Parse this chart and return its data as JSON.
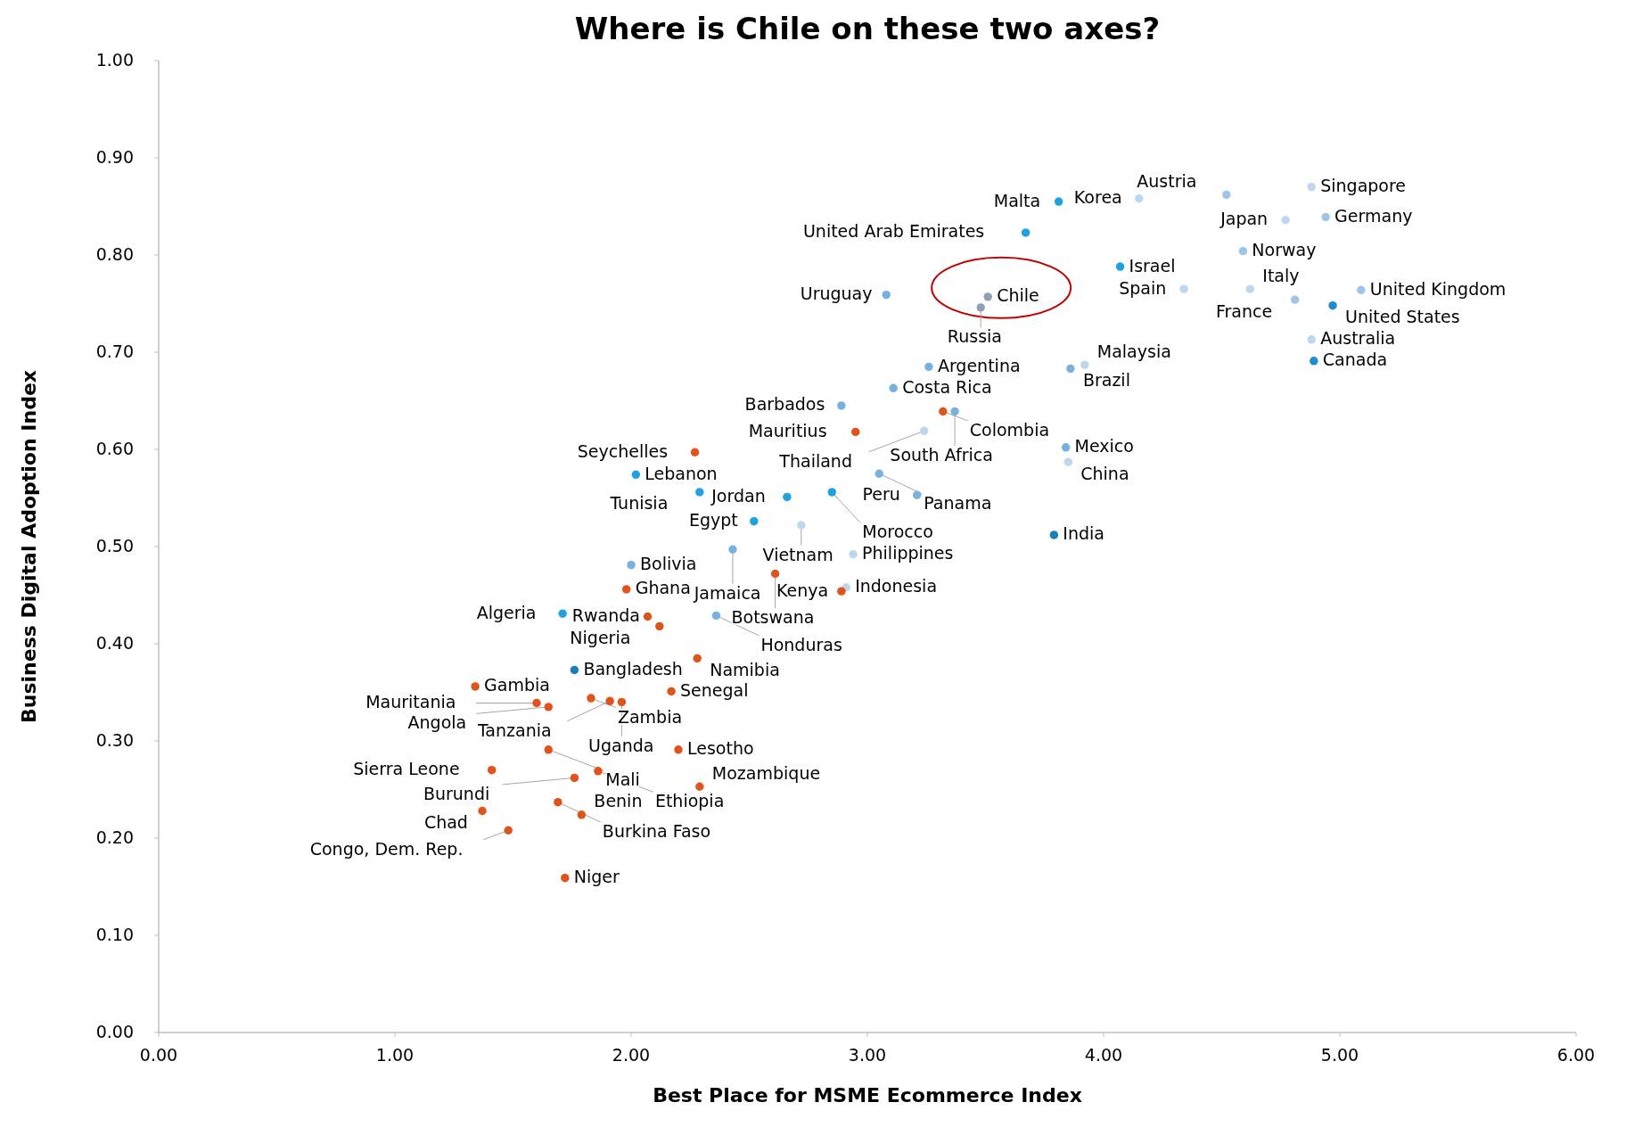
{
  "chart_data": {
    "type": "scatter",
    "title": "Where is Chile on these two axes?",
    "xlabel": "Best Place for MSME Ecommerce Index",
    "ylabel": "Business Digital Adoption Index",
    "xlim": [
      0,
      6
    ],
    "ylim": [
      0,
      1
    ],
    "xticks": [
      {
        "value": 0,
        "label": "0.00"
      },
      {
        "value": 1,
        "label": "1.00"
      },
      {
        "value": 2,
        "label": "2.00"
      },
      {
        "value": 3,
        "label": "3.00"
      },
      {
        "value": 4,
        "label": "4.00"
      },
      {
        "value": 5,
        "label": "5.00"
      },
      {
        "value": 6,
        "label": "6.00"
      }
    ],
    "yticks": [
      {
        "value": 0,
        "label": "0.00"
      },
      {
        "value": 0.1,
        "label": "0.10"
      },
      {
        "value": 0.2,
        "label": "0.20"
      },
      {
        "value": 0.3,
        "label": "0.30"
      },
      {
        "value": 0.4,
        "label": "0.40"
      },
      {
        "value": 0.5,
        "label": "0.50"
      },
      {
        "value": 0.6,
        "label": "0.60"
      },
      {
        "value": 0.7,
        "label": "0.70"
      },
      {
        "value": 0.8,
        "label": "0.80"
      },
      {
        "value": 0.9,
        "label": "0.90"
      },
      {
        "value": 1,
        "label": "1.00"
      }
    ],
    "grid": false,
    "marker": "circle",
    "x": [
      3.51,
      4.88,
      4.52,
      4.15,
      3.81,
      4.94,
      4.77,
      3.67,
      4.59,
      4.07,
      5.09,
      4.34,
      4.62,
      4.81,
      4.97,
      3.08,
      3.48,
      4.88,
      4.89,
      3.26,
      3.86,
      3.92,
      3.11,
      2.89,
      3.32,
      3.37,
      2.95,
      3.24,
      2.27,
      3.84,
      2.02,
      3.05,
      3.85,
      2.29,
      2.85,
      2.66,
      2.52,
      3.21,
      2.72,
      3.79,
      2.0,
      2.43,
      2.94,
      2.61,
      1.98,
      2.91,
      2.89,
      1.71,
      2.07,
      2.36,
      2.12,
      2.28,
      1.76,
      1.34,
      2.17,
      1.83,
      1.91,
      1.96,
      1.65,
      1.6,
      1.41,
      2.2,
      1.65,
      1.86,
      1.76,
      2.29,
      1.37,
      1.69,
      1.79,
      1.48,
      1.72
    ],
    "values": [
      0.757,
      0.87,
      0.862,
      0.858,
      0.855,
      0.839,
      0.836,
      0.823,
      0.804,
      0.788,
      0.764,
      0.765,
      0.765,
      0.754,
      0.748,
      0.759,
      0.746,
      0.713,
      0.691,
      0.685,
      0.683,
      0.687,
      0.663,
      0.645,
      0.639,
      0.639,
      0.618,
      0.619,
      0.597,
      0.602,
      0.574,
      0.575,
      0.587,
      0.556,
      0.556,
      0.551,
      0.526,
      0.553,
      0.522,
      0.512,
      0.481,
      0.497,
      0.492,
      0.472,
      0.456,
      0.458,
      0.454,
      0.431,
      0.428,
      0.429,
      0.418,
      0.385,
      0.373,
      0.356,
      0.351,
      0.344,
      0.341,
      0.34,
      0.335,
      0.339,
      0.27,
      0.291,
      0.291,
      0.269,
      0.262,
      0.253,
      0.228,
      0.237,
      0.224,
      0.208,
      0.159
    ],
    "colors": [
      "#8e9fb8",
      "#bcd7ef",
      "#9cc5e8",
      "#bcd7ef",
      "#1fa3e0",
      "#9cc5e8",
      "#bcd7ef",
      "#1fa3e0",
      "#9cc5e8",
      "#1fa3e0",
      "#9cc5e8",
      "#bcd7ef",
      "#bcd7ef",
      "#9cc5e8",
      "#1f8ccc",
      "#79b1de",
      "#8e9fb8",
      "#bcd7ef",
      "#1f8ccc",
      "#79b1de",
      "#79b1de",
      "#bcd7ef",
      "#79b1de",
      "#79b1de",
      "#e0531a",
      "#79b1de",
      "#e0531a",
      "#bcd7ef",
      "#e0531a",
      "#79b1de",
      "#1fa3e0",
      "#79b1de",
      "#bcd7ef",
      "#1fa3e0",
      "#1fa3e0",
      "#1fa3e0",
      "#1fa3e0",
      "#79b1de",
      "#bcd7ef",
      "#1b7fb5",
      "#79b1de",
      "#79b1de",
      "#bcd7ef",
      "#e0531a",
      "#e0531a",
      "#bcd7ef",
      "#e0531a",
      "#1fa3e0",
      "#e0531a",
      "#79b1de",
      "#e0531a",
      "#e0531a",
      "#1b7fb5",
      "#e0531a",
      "#e0531a",
      "#e0531a",
      "#e0531a",
      "#e0531a",
      "#e0531a",
      "#e0531a",
      "#e0531a",
      "#e0531a",
      "#e0531a",
      "#e0531a",
      "#e0531a",
      "#e0531a",
      "#e0531a",
      "#e0531a",
      "#e0531a",
      "#e0531a",
      "#e0531a"
    ],
    "annotations": [
      {
        "text": "Chile",
        "x": 3.51,
        "y": 0.757
      },
      {
        "text": "Singapore",
        "x": 4.88,
        "y": 0.87
      },
      {
        "text": "Austria",
        "x": 4.52,
        "y": 0.862
      },
      {
        "text": "Korea",
        "x": 4.15,
        "y": 0.858
      },
      {
        "text": "Malta",
        "x": 3.81,
        "y": 0.855
      },
      {
        "text": "Germany",
        "x": 4.94,
        "y": 0.839
      },
      {
        "text": "Japan",
        "x": 4.77,
        "y": 0.836
      },
      {
        "text": "United Arab Emirates",
        "x": 3.67,
        "y": 0.823
      },
      {
        "text": "Norway",
        "x": 4.59,
        "y": 0.804
      },
      {
        "text": "Israel",
        "x": 4.07,
        "y": 0.788
      },
      {
        "text": "United Kingdom",
        "x": 5.09,
        "y": 0.764
      },
      {
        "text": "Spain",
        "x": 4.34,
        "y": 0.765
      },
      {
        "text": "Italy",
        "x": 4.62,
        "y": 0.765
      },
      {
        "text": "France",
        "x": 4.81,
        "y": 0.754
      },
      {
        "text": "United States",
        "x": 4.97,
        "y": 0.748
      },
      {
        "text": "Uruguay",
        "x": 3.08,
        "y": 0.759
      },
      {
        "text": "Russia",
        "x": 3.48,
        "y": 0.746
      },
      {
        "text": "Australia",
        "x": 4.88,
        "y": 0.713
      },
      {
        "text": "Canada",
        "x": 4.89,
        "y": 0.691
      },
      {
        "text": "Argentina",
        "x": 3.26,
        "y": 0.685
      },
      {
        "text": "Brazil",
        "x": 3.86,
        "y": 0.683
      },
      {
        "text": "Malaysia",
        "x": 3.92,
        "y": 0.687
      },
      {
        "text": "Costa Rica",
        "x": 3.11,
        "y": 0.663
      },
      {
        "text": "Barbados",
        "x": 2.89,
        "y": 0.645
      },
      {
        "text": "Colombia",
        "x": 3.32,
        "y": 0.639
      },
      {
        "text": "South Africa",
        "x": 3.37,
        "y": 0.639
      },
      {
        "text": "Mauritius",
        "x": 2.95,
        "y": 0.618
      },
      {
        "text": "Thailand",
        "x": 3.24,
        "y": 0.619
      },
      {
        "text": "Seychelles",
        "x": 2.27,
        "y": 0.597
      },
      {
        "text": "Mexico",
        "x": 3.84,
        "y": 0.602
      },
      {
        "text": "Lebanon",
        "x": 2.02,
        "y": 0.574
      },
      {
        "text": "Panama",
        "x": 3.05,
        "y": 0.575
      },
      {
        "text": "China",
        "x": 3.85,
        "y": 0.587
      },
      {
        "text": "Tunisia",
        "x": 2.29,
        "y": 0.556
      },
      {
        "text": "Morocco",
        "x": 2.85,
        "y": 0.556
      },
      {
        "text": "Jordan",
        "x": 2.66,
        "y": 0.551
      },
      {
        "text": "Egypt",
        "x": 2.52,
        "y": 0.526
      },
      {
        "text": "Peru",
        "x": 3.21,
        "y": 0.553
      },
      {
        "text": "Vietnam",
        "x": 2.72,
        "y": 0.522
      },
      {
        "text": "India",
        "x": 3.79,
        "y": 0.512
      },
      {
        "text": "Bolivia",
        "x": 2.0,
        "y": 0.481
      },
      {
        "text": "Jamaica",
        "x": 2.43,
        "y": 0.497
      },
      {
        "text": "Philippines",
        "x": 2.94,
        "y": 0.492
      },
      {
        "text": "Botswana",
        "x": 2.61,
        "y": 0.472
      },
      {
        "text": "Ghana",
        "x": 1.98,
        "y": 0.456
      },
      {
        "text": "Indonesia",
        "x": 2.91,
        "y": 0.458
      },
      {
        "text": "Kenya",
        "x": 2.89,
        "y": 0.454
      },
      {
        "text": "Algeria",
        "x": 1.71,
        "y": 0.431
      },
      {
        "text": "Rwanda",
        "x": 2.07,
        "y": 0.428
      },
      {
        "text": "Honduras",
        "x": 2.36,
        "y": 0.429
      },
      {
        "text": "Nigeria",
        "x": 2.12,
        "y": 0.418
      },
      {
        "text": "Namibia",
        "x": 2.28,
        "y": 0.385
      },
      {
        "text": "Bangladesh",
        "x": 1.76,
        "y": 0.373
      },
      {
        "text": "Gambia",
        "x": 1.34,
        "y": 0.356
      },
      {
        "text": "Senegal",
        "x": 2.17,
        "y": 0.351
      },
      {
        "text": "Zambia",
        "x": 1.83,
        "y": 0.344
      },
      {
        "text": "Tanzania",
        "x": 1.91,
        "y": 0.341
      },
      {
        "text": "Uganda",
        "x": 1.96,
        "y": 0.34
      },
      {
        "text": "Angola",
        "x": 1.65,
        "y": 0.335
      },
      {
        "text": "Mauritania",
        "x": 1.6,
        "y": 0.339
      },
      {
        "text": "Sierra Leone",
        "x": 1.41,
        "y": 0.27
      },
      {
        "text": "Lesotho",
        "x": 2.2,
        "y": 0.291
      },
      {
        "text": "Mali",
        "x": 1.65,
        "y": 0.291
      },
      {
        "text": "Ethiopia",
        "x": 1.86,
        "y": 0.269
      },
      {
        "text": "Burundi",
        "x": 1.76,
        "y": 0.262
      },
      {
        "text": "Mozambique",
        "x": 2.29,
        "y": 0.253
      },
      {
        "text": "Chad",
        "x": 1.37,
        "y": 0.228
      },
      {
        "text": "Burkina Faso",
        "x": 1.69,
        "y": 0.237
      },
      {
        "text": "Benin",
        "x": 1.79,
        "y": 0.224
      },
      {
        "text": "Congo, Dem. Rep.",
        "x": 1.48,
        "y": 0.208
      },
      {
        "text": "Niger",
        "x": 1.72,
        "y": 0.159
      }
    ]
  }
}
